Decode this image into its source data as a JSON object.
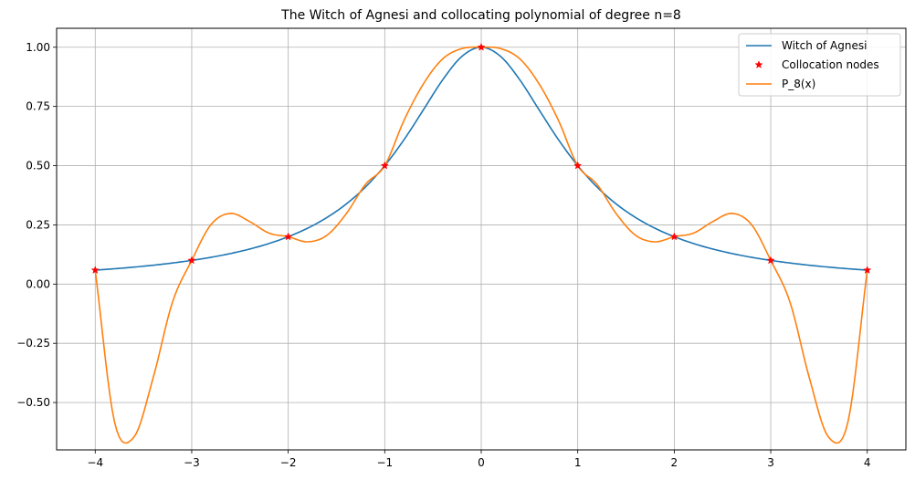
{
  "chart_data": {
    "type": "line",
    "title": "The Witch of Agnesi and collocating polynomial of degree n=8",
    "xlabel": "",
    "ylabel": "",
    "xlim": [
      -4.4,
      4.4
    ],
    "ylim": [
      -0.7,
      1.08
    ],
    "grid": true,
    "legend_position": "upper-right",
    "x_ticks": [
      -4,
      -3,
      -2,
      -1,
      0,
      1,
      2,
      3,
      4
    ],
    "x_tick_labels": [
      "−4",
      "−3",
      "−2",
      "−1",
      "0",
      "1",
      "2",
      "3",
      "4"
    ],
    "y_ticks": [
      -0.5,
      -0.25,
      0,
      0.25,
      0.5,
      0.75,
      1
    ],
    "y_tick_labels": [
      "−0.50",
      "−0.25",
      "0.00",
      "0.25",
      "0.50",
      "0.75",
      "1.00"
    ],
    "x": [
      -4.0,
      -3.8,
      -3.6,
      -3.4,
      -3.2,
      -3.0,
      -2.8,
      -2.6,
      -2.4,
      -2.2,
      -2.0,
      -1.8,
      -1.6,
      -1.4,
      -1.2,
      -1.0,
      -0.8,
      -0.6,
      -0.4,
      -0.2,
      0.0,
      0.2,
      0.4,
      0.6,
      0.8,
      1.0,
      1.2,
      1.4,
      1.6,
      1.8,
      2.0,
      2.2,
      2.4,
      2.6,
      2.8,
      3.0,
      3.2,
      3.4,
      3.6,
      3.8,
      4.0
    ],
    "series": [
      {
        "name": "Witch of Agnesi",
        "style": "line",
        "color": "#1f77b4",
        "values": [
          0.0588,
          0.0648,
          0.0716,
          0.0796,
          0.089,
          0.1,
          0.1131,
          0.1289,
          0.1479,
          0.1712,
          0.2,
          0.2358,
          0.2809,
          0.3378,
          0.4098,
          0.5,
          0.6098,
          0.7353,
          0.8621,
          0.9615,
          1.0,
          0.9615,
          0.8621,
          0.7353,
          0.6098,
          0.5,
          0.4098,
          0.3378,
          0.2809,
          0.2358,
          0.2,
          0.1712,
          0.1479,
          0.1289,
          0.1131,
          0.1,
          0.089,
          0.0796,
          0.0716,
          0.0648,
          0.0588
        ]
      },
      {
        "name": "P_8(x)",
        "style": "line",
        "color": "#ff7f0e",
        "values": [
          0.0588,
          -0.582,
          -0.6469,
          -0.3961,
          -0.0771,
          0.1,
          0.2514,
          0.2985,
          0.2641,
          0.2153,
          0.2,
          0.1784,
          0.2057,
          0.2965,
          0.4208,
          0.5,
          0.6913,
          0.8449,
          0.9508,
          0.9944,
          1.0,
          0.9944,
          0.9508,
          0.8449,
          0.6913,
          0.5,
          0.4208,
          0.2965,
          0.2057,
          0.1784,
          0.2,
          0.2153,
          0.2641,
          0.2985,
          0.2514,
          0.1,
          -0.0771,
          -0.3961,
          -0.6469,
          -0.582,
          0.0588
        ]
      },
      {
        "name": "Collocation nodes",
        "style": "marker",
        "color": "#ff0000",
        "x": [
          -4,
          -3,
          -2,
          -1,
          0,
          1,
          2,
          3,
          4
        ],
        "values": [
          0.0588,
          0.1,
          0.2,
          0.5,
          1.0,
          0.5,
          0.2,
          0.1,
          0.0588
        ]
      }
    ],
    "legend_order": [
      "Witch of Agnesi",
      "Collocation nodes",
      "P_8(x)"
    ]
  }
}
